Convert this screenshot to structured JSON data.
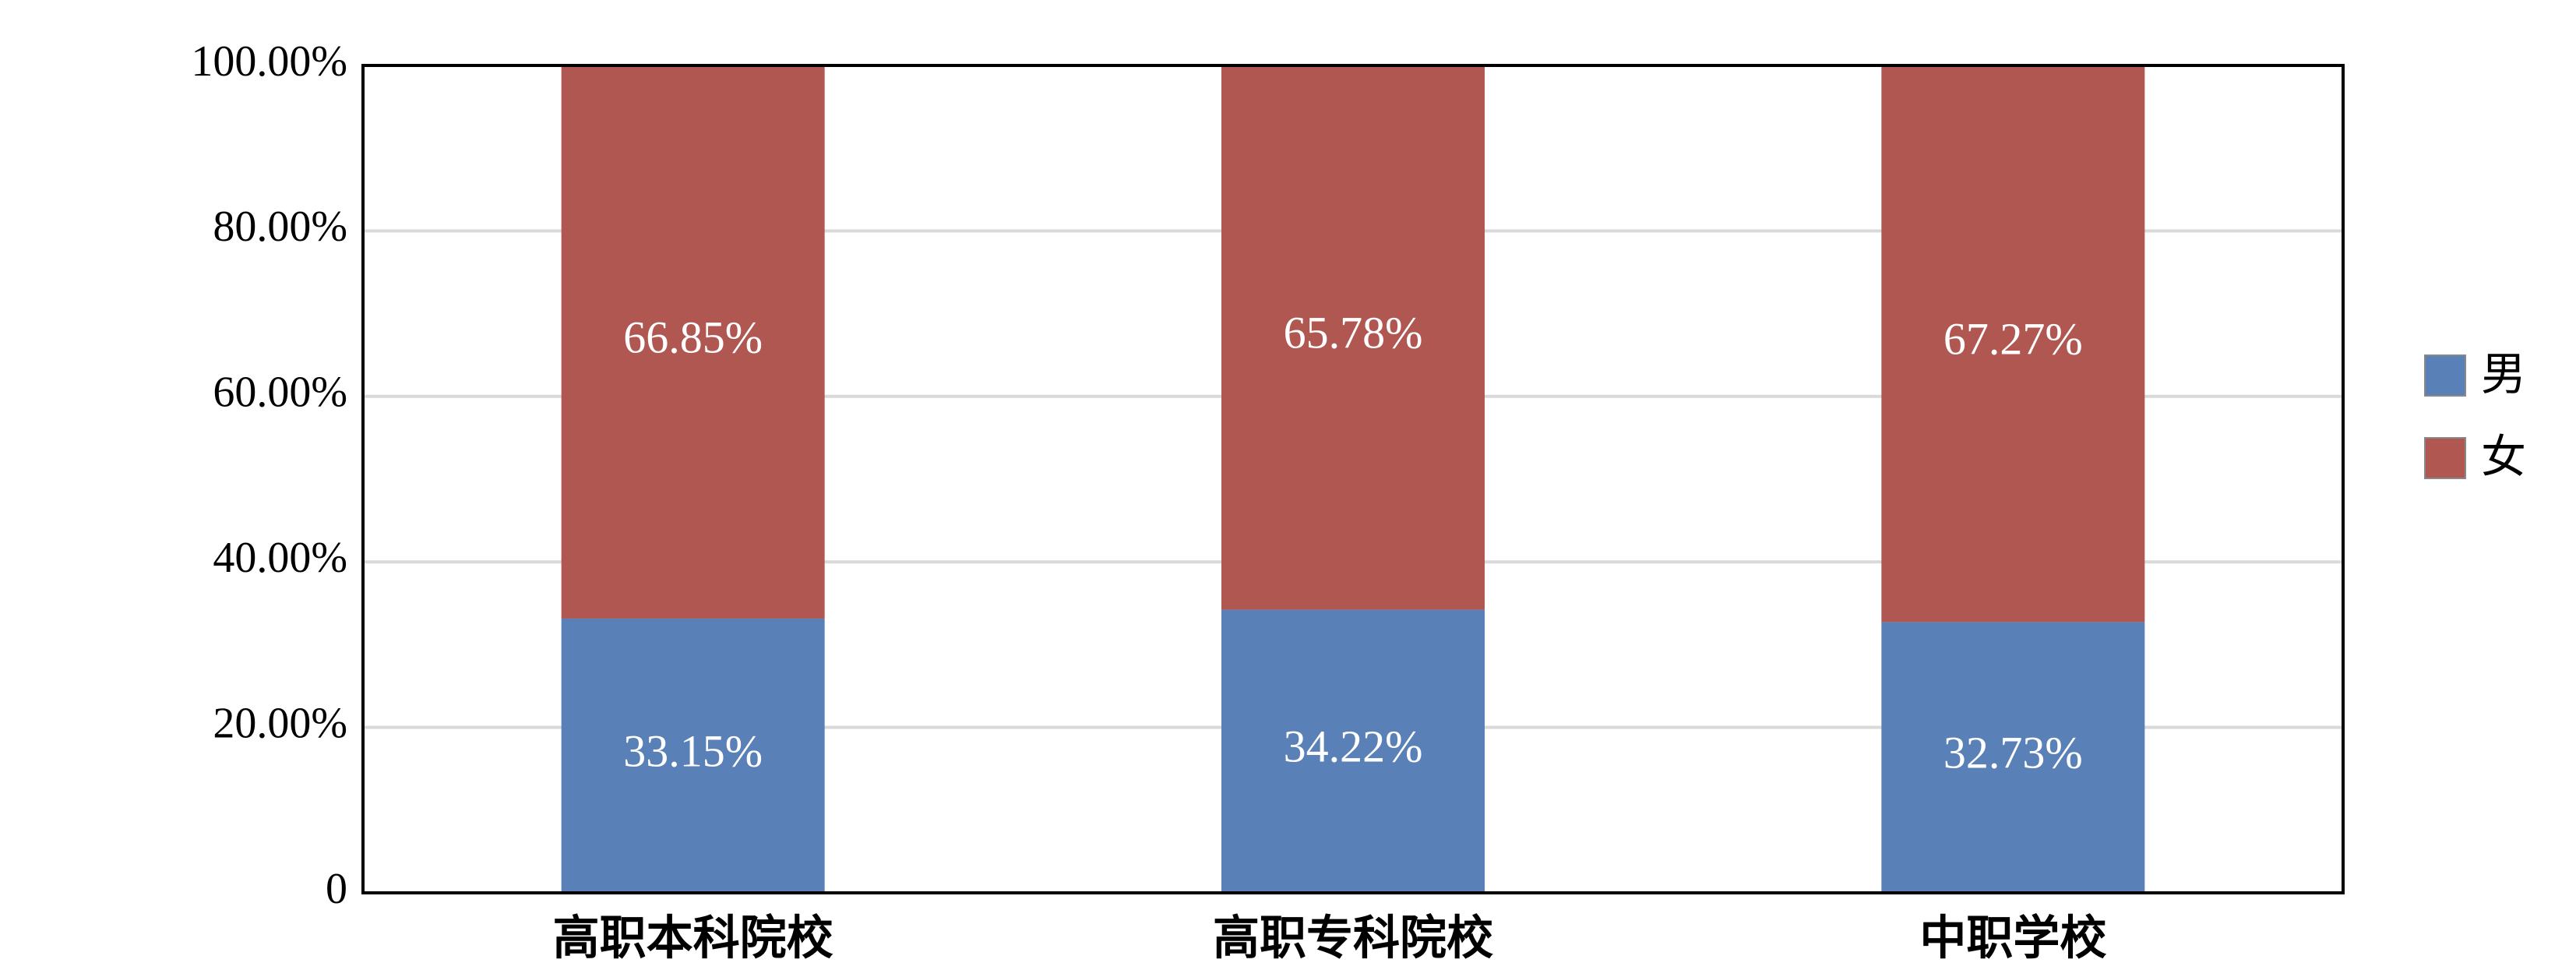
{
  "chart_data": {
    "type": "stacked_bar",
    "categories": [
      "高职本科院校",
      "高职专科院校",
      "中职学校"
    ],
    "series": [
      {
        "name": "男",
        "color": "#5a80b8",
        "values": [
          33.15,
          34.22,
          32.73
        ],
        "value_labels": [
          "33.15%",
          "34.22%",
          "32.73%"
        ]
      },
      {
        "name": "女",
        "color": "#b05752",
        "values": [
          66.85,
          65.78,
          67.27
        ],
        "value_labels": [
          "66.85%",
          "65.78%",
          "67.27%"
        ]
      }
    ],
    "ylim": [
      0,
      100
    ],
    "yticks": [
      0,
      {
        "value": 20,
        "label": "20.00%"
      },
      {
        "value": 40,
        "label": "40.00%"
      },
      {
        "value": 60,
        "label": "60.00%"
      },
      {
        "value": 80,
        "label": "80.00%"
      },
      {
        "value": 100,
        "label": "100.00%"
      }
    ],
    "grid": true,
    "legend": "right"
  }
}
